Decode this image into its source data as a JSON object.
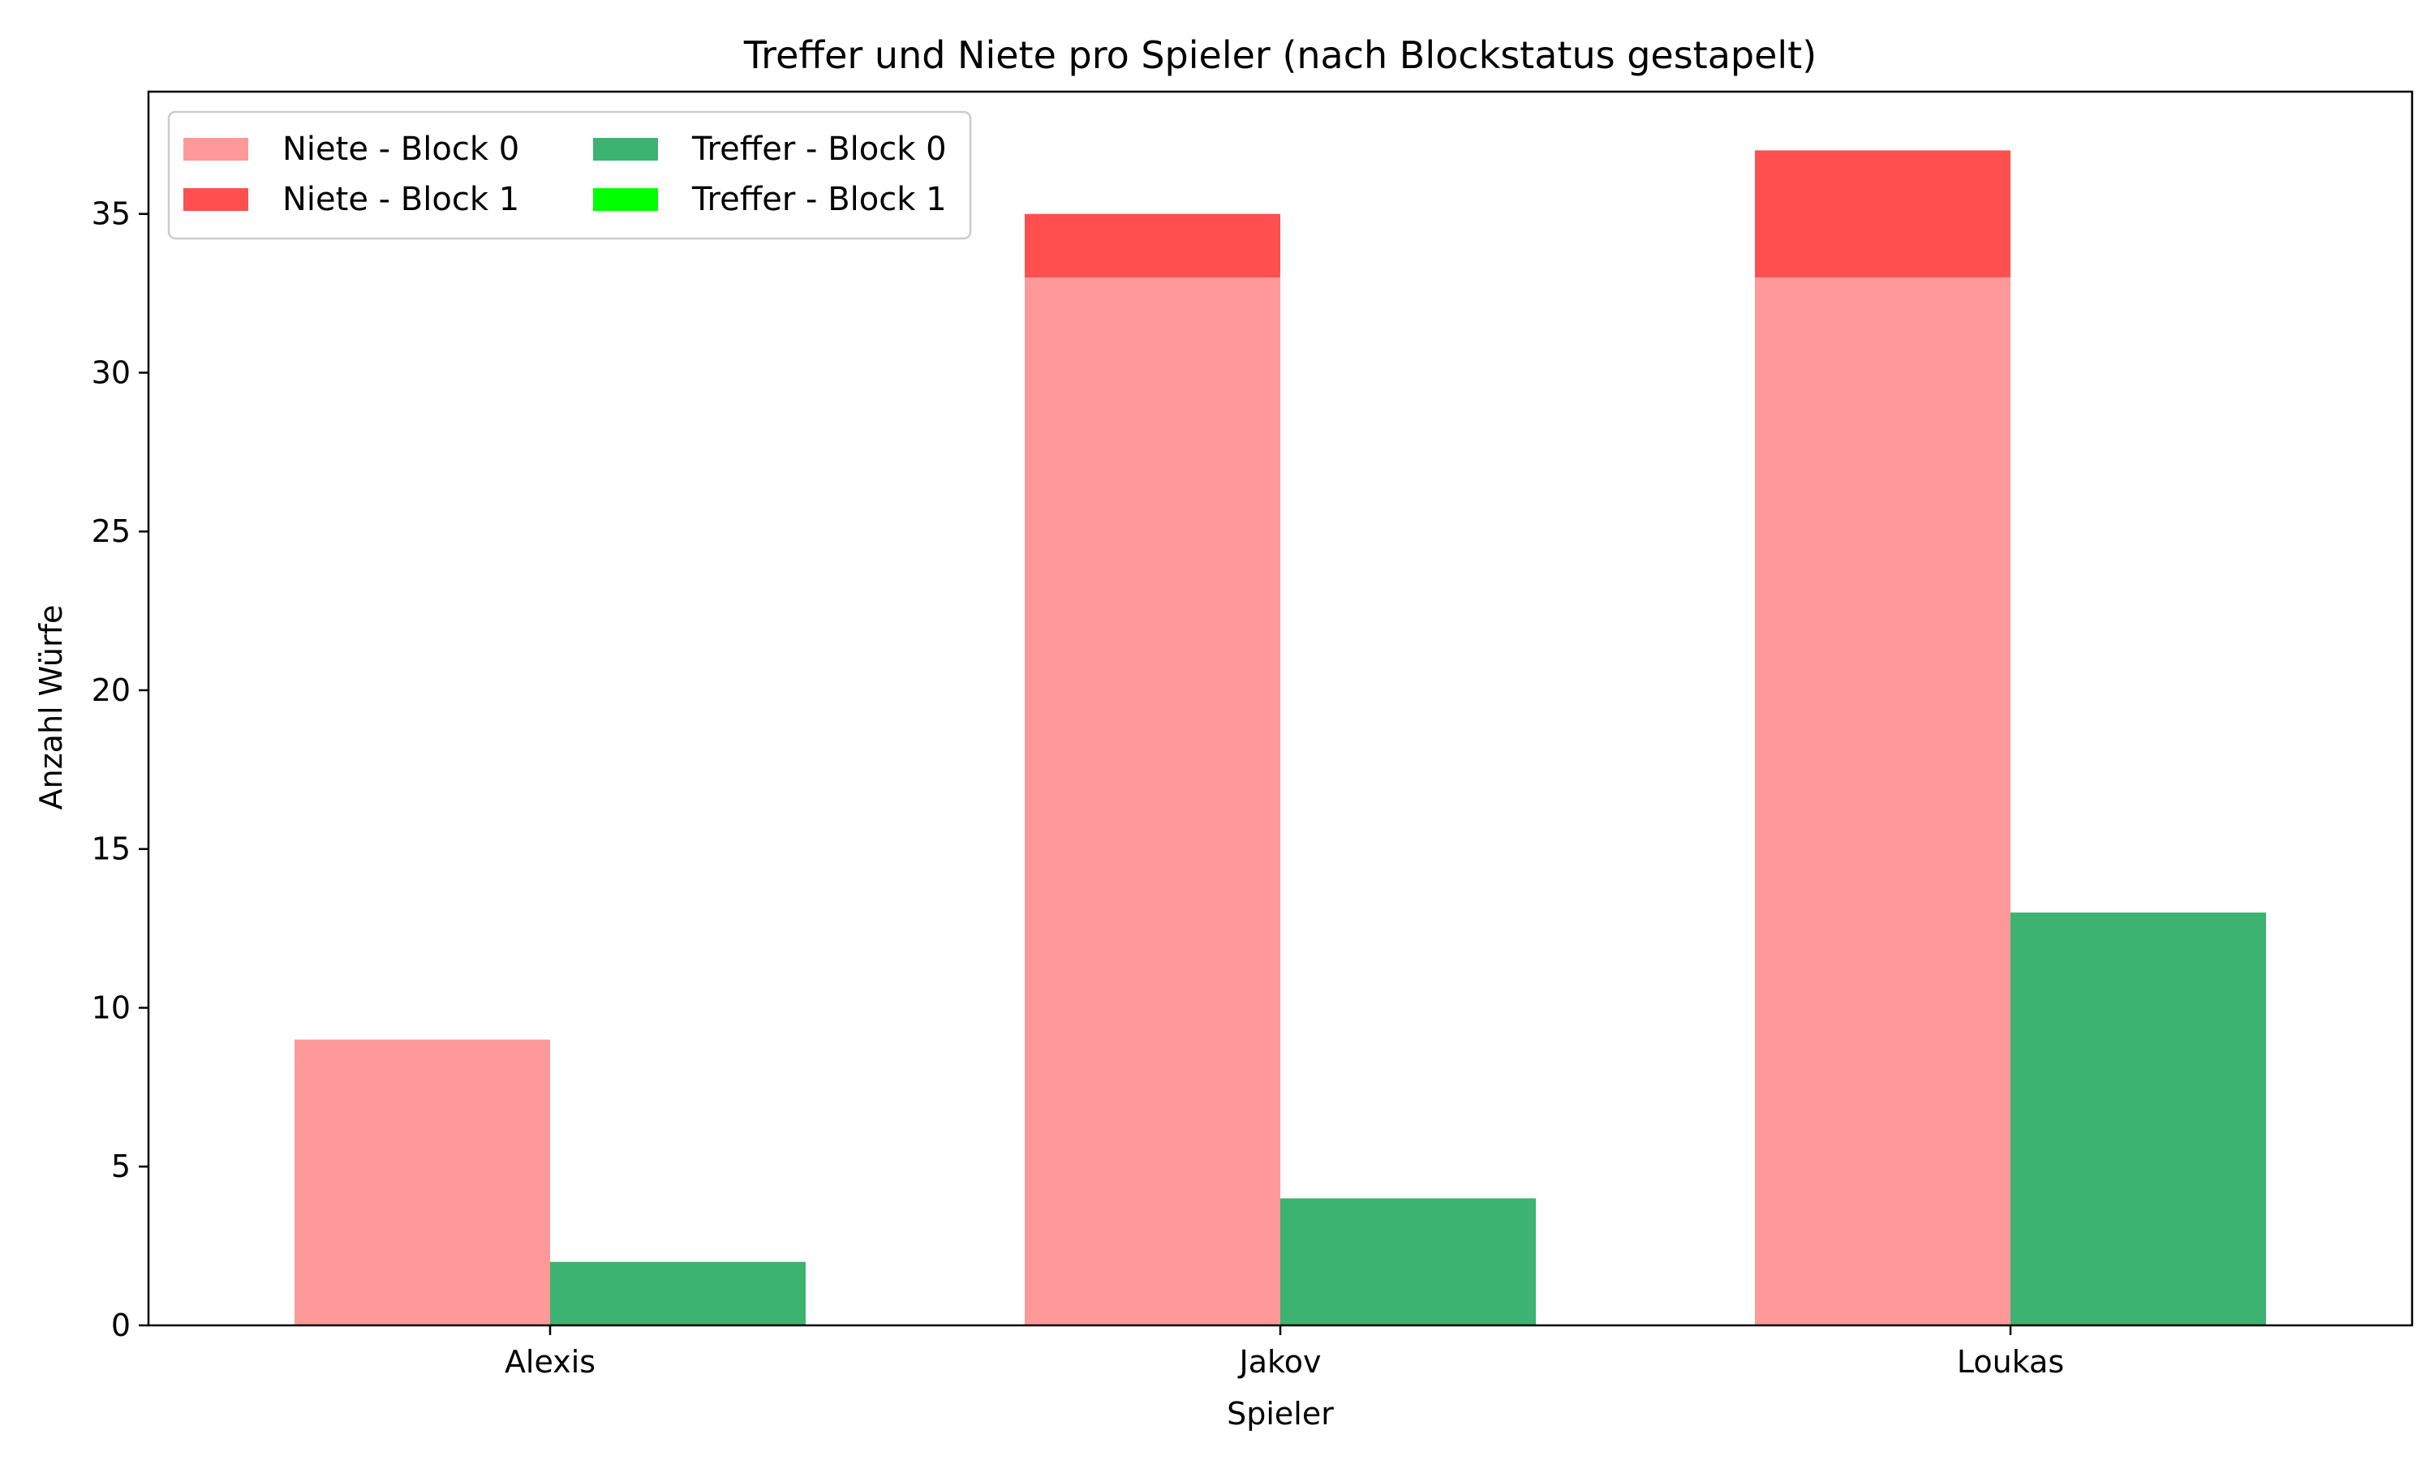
{
  "chart_data": {
    "type": "bar",
    "title": "Treffer und Niete pro Spieler (nach Blockstatus gestapelt)",
    "xlabel": "Spieler",
    "ylabel": "Anzahl Würfe",
    "categories": [
      "Alexis",
      "Jakov",
      "Loukas"
    ],
    "ylim": [
      0,
      38.85
    ],
    "yticks": [
      0,
      5,
      10,
      15,
      20,
      25,
      30,
      35
    ],
    "grid": false,
    "legend_placement": "top-left",
    "legend_columns": 2,
    "groups": [
      {
        "name": "Niete",
        "stacked": true,
        "series": [
          {
            "name": "Niete - Block 0",
            "color": "#ff9999",
            "values": [
              9,
              33,
              33
            ]
          },
          {
            "name": "Niete - Block 1",
            "color": "#ff4f4f",
            "values": [
              0,
              2,
              4
            ]
          }
        ]
      },
      {
        "name": "Treffer",
        "stacked": true,
        "series": [
          {
            "name": "Treffer - Block 0",
            "color": "#3cb371",
            "values": [
              2,
              4,
              13
            ]
          },
          {
            "name": "Treffer - Block 1",
            "color": "#00ff00",
            "values": [
              0,
              0,
              0
            ]
          }
        ]
      }
    ]
  }
}
